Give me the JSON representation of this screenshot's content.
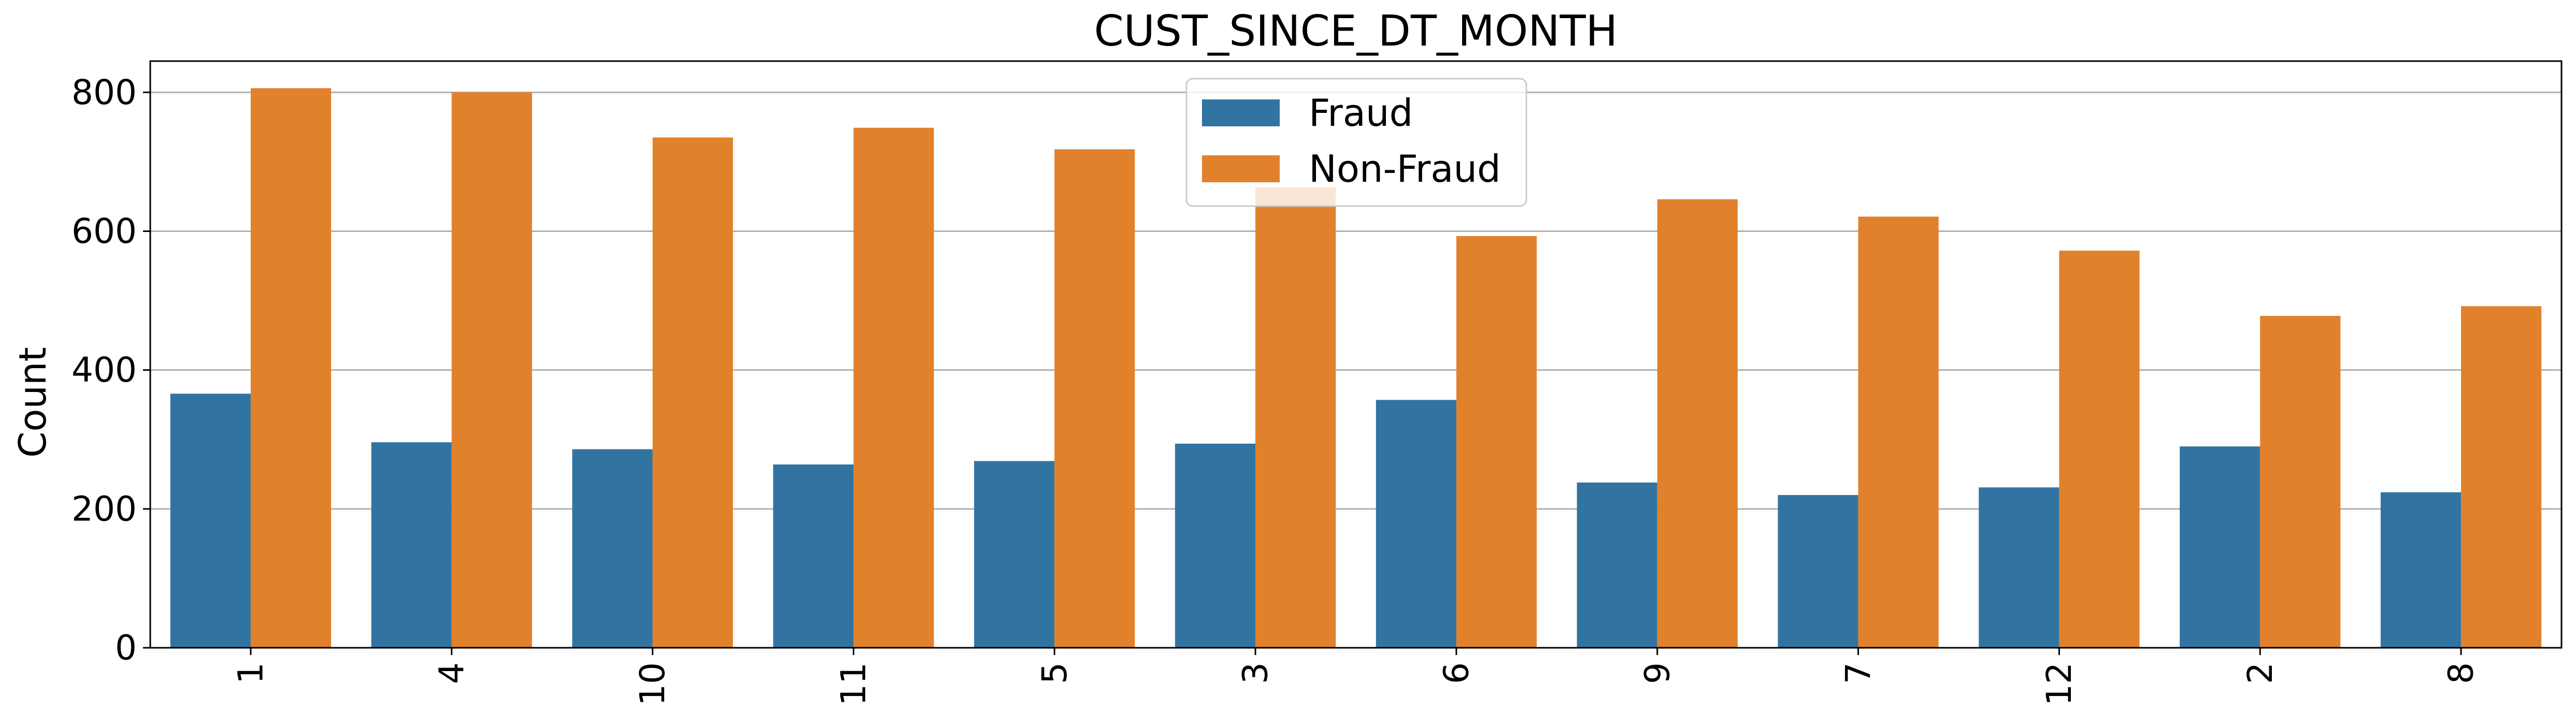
{
  "chart_data": {
    "type": "bar",
    "title": "CUST_SINCE_DT_MONTH",
    "xlabel": "",
    "ylabel": "Count",
    "categories": [
      "1",
      "4",
      "10",
      "11",
      "5",
      "3",
      "6",
      "9",
      "7",
      "12",
      "2",
      "8"
    ],
    "series": [
      {
        "name": "Fraud",
        "color": "#3274a1",
        "values": [
          366,
          296,
          286,
          264,
          269,
          294,
          357,
          238,
          220,
          231,
          290,
          224
        ]
      },
      {
        "name": "Non-Fraud",
        "color": "#e1812c",
        "values": [
          806,
          800,
          735,
          749,
          718,
          663,
          593,
          646,
          621,
          572,
          478,
          492
        ]
      }
    ],
    "ylim": [
      0,
      845
    ],
    "yticks": [
      0,
      200,
      400,
      600,
      800
    ],
    "grid": "horizontal",
    "legend_position": "top-center"
  }
}
